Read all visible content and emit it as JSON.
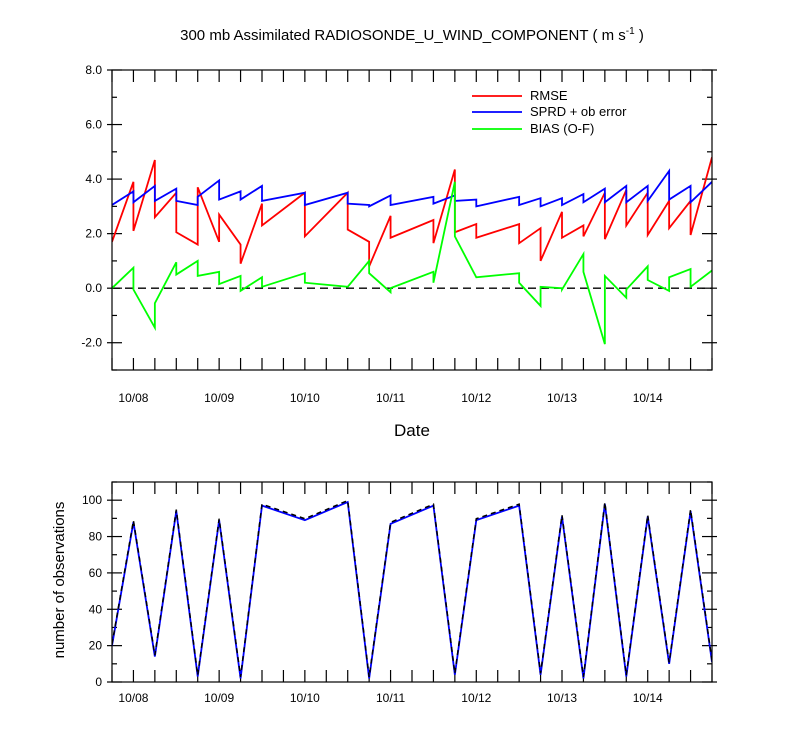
{
  "chart_data": [
    {
      "type": "line",
      "title_main": "300 mb Assimilated RADIOSONDE_U_WIND_COMPONENT ( m s",
      "title_sup": "-1",
      "title_end": " )",
      "xlabel": "Date",
      "ylabel": "",
      "xlim": [
        0,
        14
      ],
      "ylim": [
        -3,
        8
      ],
      "yticks": [
        -2,
        0,
        2,
        4,
        6,
        8
      ],
      "ytick_labels": [
        "-2.0",
        "0.0",
        "2.0",
        "4.0",
        "6.0",
        "8.0"
      ],
      "xtick_positions": [
        0.5,
        2.5,
        4.5,
        6.5,
        8.5,
        10.5,
        12.5
      ],
      "xtick_labels": [
        "10/08",
        "10/09",
        "10/10",
        "10/11",
        "10/12",
        "10/13",
        "10/14"
      ],
      "zero_line": true,
      "legend": [
        "RMSE",
        "SPRD + ob error",
        "BIAS (O-F)"
      ],
      "series": [
        {
          "name": "RMSE",
          "color": "#ff0000",
          "x": [
            0,
            0.5,
            0.5,
            1,
            1,
            1.5,
            1.5,
            2,
            2,
            2.5,
            2.5,
            3,
            3,
            3.5,
            3.5,
            4.5,
            4.5,
            5.5,
            5.5,
            6,
            6,
            6.5,
            6.5,
            7.5,
            7.5,
            8,
            8,
            8.5,
            8.5,
            9.5,
            9.5,
            10,
            10,
            10.5,
            10.5,
            11,
            11,
            11.5,
            11.5,
            12,
            12,
            12.5,
            12.5,
            13,
            13,
            13.5,
            13.5,
            14
          ],
          "y": [
            1.7,
            3.9,
            2.1,
            4.7,
            2.6,
            3.5,
            2.05,
            1.6,
            3.7,
            1.7,
            2.7,
            1.6,
            0.9,
            3.1,
            2.3,
            3.5,
            1.9,
            3.5,
            2.15,
            1.7,
            0.8,
            2.65,
            1.85,
            2.5,
            1.65,
            4.35,
            2.05,
            2.35,
            1.85,
            2.35,
            1.65,
            2.2,
            1.0,
            2.8,
            1.85,
            2.3,
            1.9,
            3.5,
            1.8,
            3.6,
            2.3,
            3.5,
            1.95,
            3.2,
            2.2,
            3.2,
            1.95,
            4.8
          ]
        },
        {
          "name": "SPRD + ob error",
          "color": "#0000ff",
          "x": [
            0,
            0.5,
            0.5,
            1,
            1,
            1.5,
            1.5,
            2,
            2,
            2.5,
            2.5,
            3,
            3,
            3.5,
            3.5,
            4.5,
            4.5,
            5.5,
            5.5,
            6,
            6,
            6.5,
            6.5,
            7.5,
            7.5,
            8,
            8,
            8.5,
            8.5,
            9.5,
            9.5,
            10,
            10,
            10.5,
            10.5,
            11,
            11,
            11.5,
            11.5,
            12,
            12,
            12.5,
            12.5,
            13,
            13,
            13.5,
            13.5,
            14
          ],
          "y": [
            3.05,
            3.55,
            3.15,
            3.75,
            3.2,
            3.65,
            3.2,
            3.05,
            3.35,
            3.95,
            3.25,
            3.55,
            3.25,
            3.75,
            3.2,
            3.5,
            3.05,
            3.5,
            3.1,
            3.05,
            3.0,
            3.4,
            3.05,
            3.35,
            3.1,
            3.4,
            3.2,
            3.25,
            3.0,
            3.35,
            3.05,
            3.3,
            3.0,
            3.3,
            3.05,
            3.45,
            3.15,
            3.65,
            3.15,
            3.75,
            3.15,
            3.75,
            3.2,
            4.3,
            3.25,
            3.75,
            3.15,
            3.9
          ]
        },
        {
          "name": "BIAS (O-F)",
          "color": "#00ff00",
          "x": [
            0,
            0.5,
            0.5,
            1,
            1,
            1.5,
            1.5,
            2,
            2,
            2.5,
            2.5,
            3,
            3,
            3.5,
            3.5,
            4.5,
            4.5,
            5.5,
            5.5,
            6,
            6,
            6.5,
            6.5,
            7.5,
            7.5,
            8,
            8,
            8.5,
            8.5,
            9.5,
            9.5,
            10,
            10,
            10.5,
            10.5,
            11,
            11,
            11.5,
            11.5,
            12,
            12,
            12.5,
            12.5,
            13,
            13,
            13.5,
            13.5,
            14
          ],
          "y": [
            0.0,
            0.75,
            -0.05,
            -1.45,
            -0.55,
            0.95,
            0.5,
            1.0,
            0.45,
            0.6,
            0.15,
            0.45,
            -0.1,
            0.4,
            0.05,
            0.55,
            0.2,
            0.05,
            0.05,
            1.0,
            0.55,
            -0.15,
            0.0,
            0.6,
            0.2,
            3.9,
            1.9,
            0.4,
            0.4,
            0.55,
            0.2,
            -0.65,
            0.05,
            0.0,
            -0.05,
            1.25,
            0.6,
            -2.05,
            0.45,
            -0.35,
            -0.05,
            0.8,
            0.3,
            -0.1,
            0.4,
            0.7,
            0.05,
            0.65
          ]
        }
      ]
    },
    {
      "type": "line",
      "title": "",
      "xlabel": "",
      "ylabel": "number of observations",
      "xlim": [
        0,
        14
      ],
      "ylim": [
        0,
        110
      ],
      "yticks": [
        0,
        20,
        40,
        60,
        80,
        100
      ],
      "ytick_labels": [
        "0",
        "20",
        "40",
        "60",
        "80",
        "100"
      ],
      "xtick_positions": [
        0.5,
        2.5,
        4.5,
        6.5,
        8.5,
        10.5,
        12.5
      ],
      "xtick_labels": [
        "10/08",
        "10/09",
        "10/10",
        "10/11",
        "10/12",
        "10/13",
        "10/14"
      ],
      "series": [
        {
          "name": "observations",
          "color": "#0000ff",
          "dashed_overlay_color": "#000000",
          "x": [
            0,
            0.5,
            1,
            1.5,
            2,
            2.5,
            3,
            3.5,
            4.5,
            5.5,
            6,
            6.5,
            7.5,
            8,
            8.5,
            9.5,
            10,
            10.5,
            11,
            11.5,
            12,
            12.5,
            13,
            13.5,
            14
          ],
          "y": [
            20,
            88,
            14,
            94,
            3,
            89,
            2,
            97,
            89,
            99,
            2,
            87,
            97,
            4,
            89,
            97,
            4,
            91,
            2,
            98,
            3,
            91,
            10,
            94,
            11
          ]
        }
      ]
    }
  ]
}
